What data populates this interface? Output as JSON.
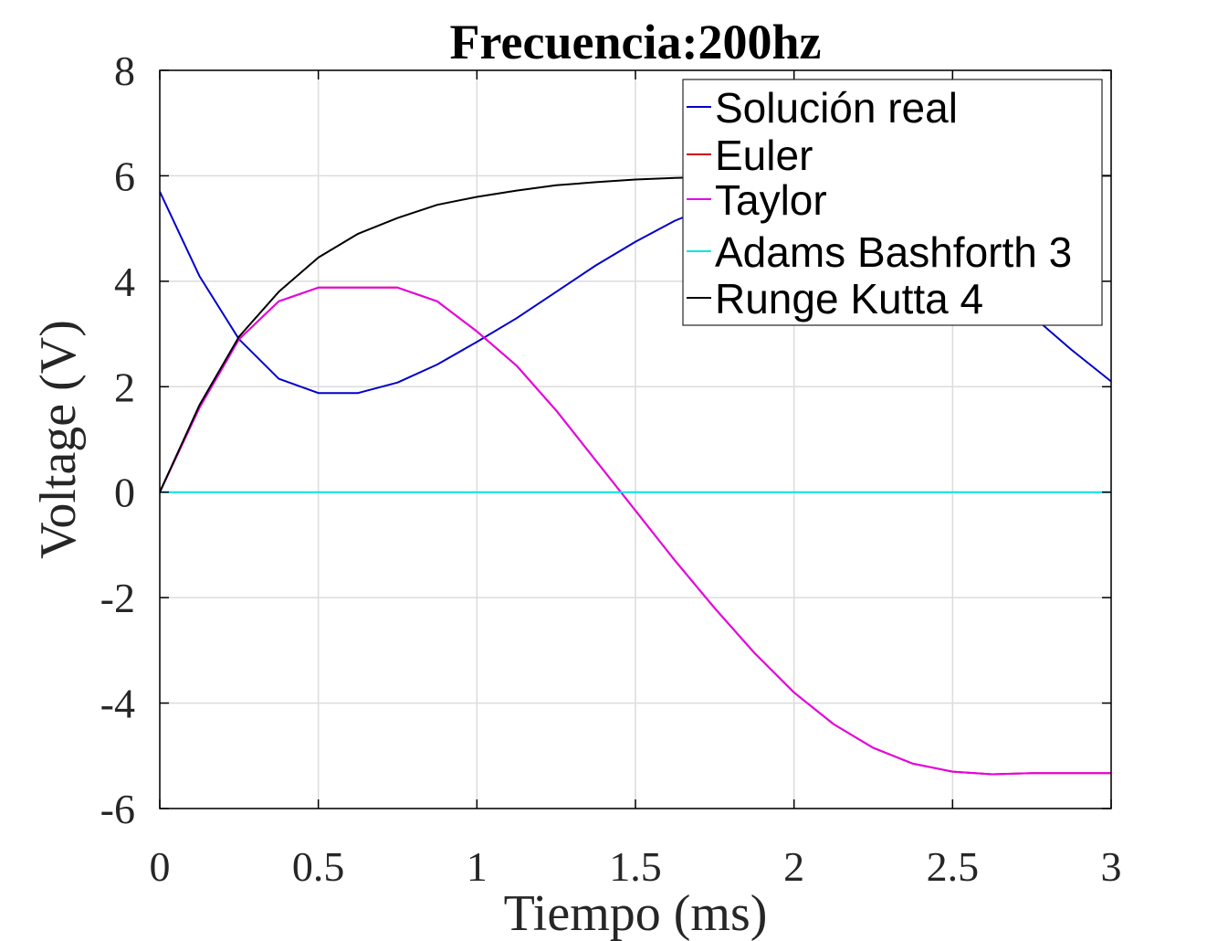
{
  "chart_data": {
    "type": "line",
    "title": "Frecuencia:200hz",
    "xlabel": "Tiempo (ms)",
    "ylabel": "Voltage (V)",
    "xlim": [
      0,
      3
    ],
    "ylim": [
      -6,
      8
    ],
    "grid": true,
    "legend_position": "top-right",
    "x_ticks": [
      0,
      0.5,
      1,
      1.5,
      2,
      2.5,
      3
    ],
    "x_tick_labels": [
      "0",
      "0.5",
      "1",
      "1.5",
      "2",
      "2.5",
      "3"
    ],
    "y_ticks": [
      -6,
      -4,
      -2,
      0,
      2,
      4,
      6,
      8
    ],
    "y_tick_labels": [
      "-6",
      "-4",
      "-2",
      "0",
      "2",
      "4",
      "6",
      "8"
    ],
    "x": [
      0,
      0.125,
      0.25,
      0.375,
      0.5,
      0.625,
      0.75,
      0.875,
      1,
      1.125,
      1.25,
      1.375,
      1.5,
      1.625,
      1.75,
      1.875,
      2,
      2.125,
      2.25,
      2.375,
      2.5,
      2.625,
      2.75,
      2.875,
      3
    ],
    "series": [
      {
        "name": "Solución real",
        "color": "#0000cc",
        "values": [
          5.7,
          4.1,
          2.9,
          2.15,
          1.88,
          1.88,
          2.08,
          2.42,
          2.85,
          3.3,
          3.8,
          4.3,
          4.75,
          5.15,
          5.45,
          5.65,
          5.75,
          5.7,
          5.5,
          5.1,
          4.6,
          4.0,
          3.35,
          2.7,
          2.1
        ]
      },
      {
        "name": "Euler",
        "color": "#cc0000",
        "values": [
          0,
          1.6,
          2.9,
          3.62,
          3.88,
          3.88,
          3.88,
          3.62,
          3.05,
          2.4,
          1.55,
          0.6,
          -0.35,
          -1.3,
          -2.2,
          -3.05,
          -3.8,
          -4.4,
          -4.85,
          -5.15,
          -5.3,
          -5.35,
          -5.33,
          -5.33,
          -5.33
        ]
      },
      {
        "name": "Taylor",
        "color": "#e600e6",
        "values": [
          0,
          1.6,
          2.9,
          3.62,
          3.88,
          3.88,
          3.88,
          3.62,
          3.05,
          2.4,
          1.55,
          0.6,
          -0.35,
          -1.3,
          -2.2,
          -3.05,
          -3.8,
          -4.4,
          -4.85,
          -5.15,
          -5.3,
          -5.35,
          -5.33,
          -5.33,
          -5.33
        ]
      },
      {
        "name": "Adams Bashforth 3",
        "color": "#00e5e5",
        "values": [
          0,
          0,
          0,
          0,
          0,
          0,
          0,
          0,
          0,
          0,
          0,
          0,
          0,
          0,
          0,
          0,
          0,
          0,
          0,
          0,
          0,
          0,
          0,
          0,
          0
        ]
      },
      {
        "name": "Runge Kutta 4",
        "color": "#000000",
        "values": [
          0,
          1.65,
          2.95,
          3.8,
          4.45,
          4.9,
          5.2,
          5.45,
          5.6,
          5.72,
          5.82,
          5.88,
          5.93,
          5.96,
          5.98,
          6.0,
          6.0,
          6.0,
          6.0,
          6.0,
          6.0,
          6.0,
          6.0,
          6.0,
          6.0
        ]
      }
    ]
  }
}
